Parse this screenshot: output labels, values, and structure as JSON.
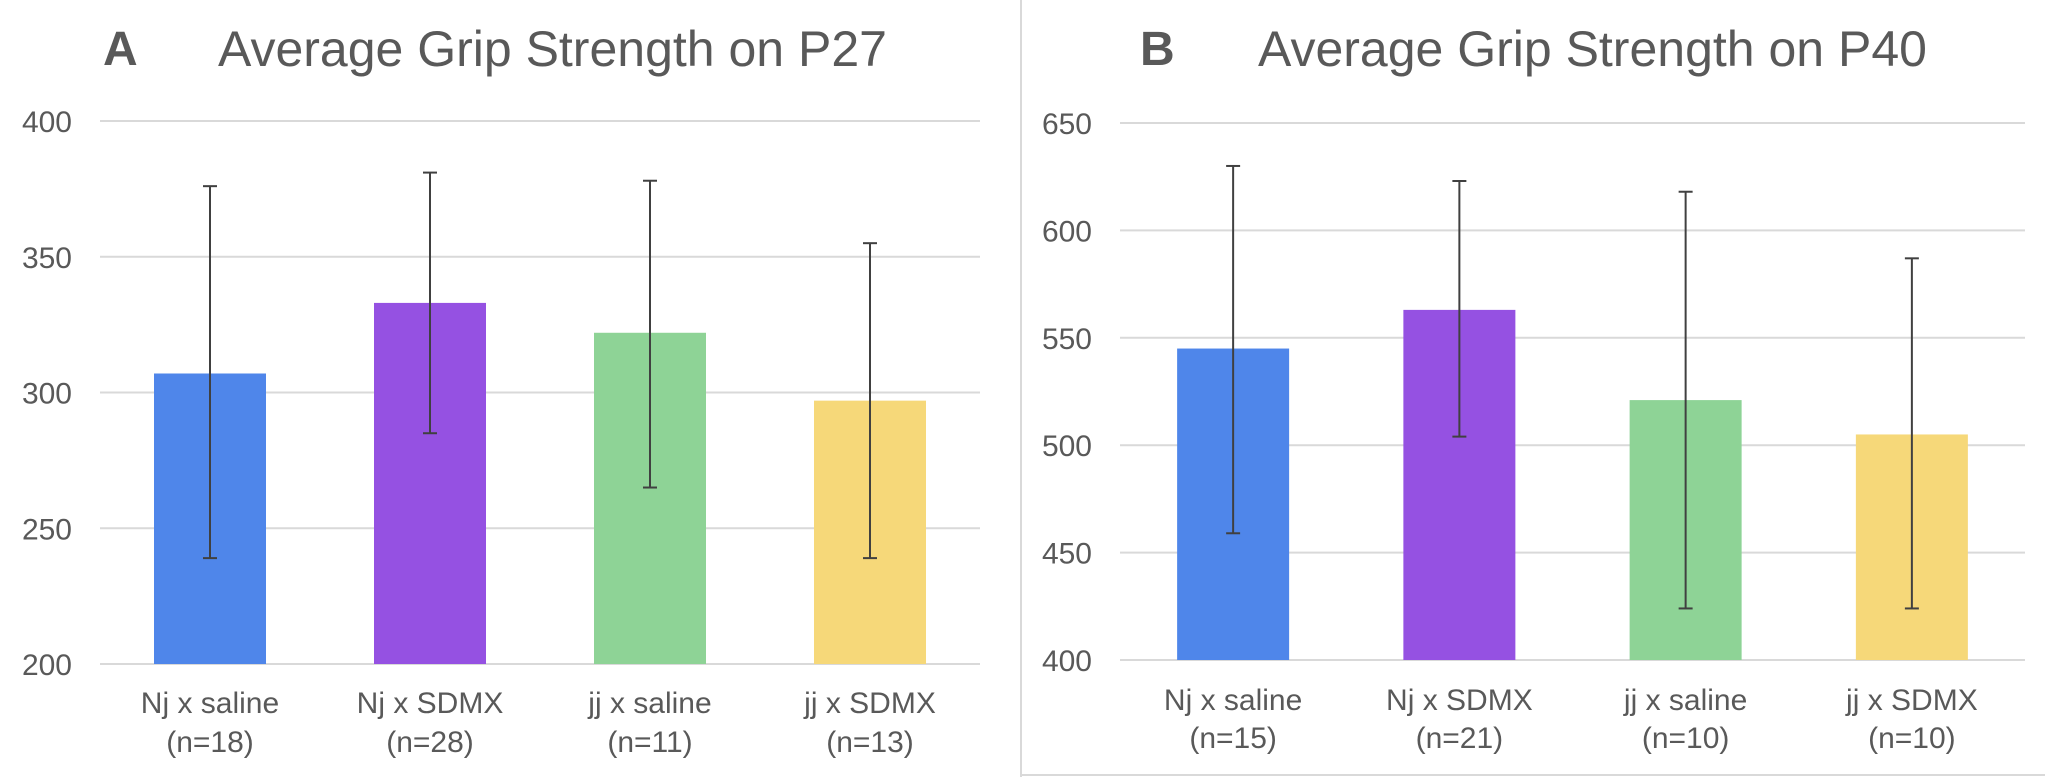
{
  "panels": [
    {
      "letter": "A",
      "title": "Average Grip Strength on P27"
    },
    {
      "letter": "B",
      "title": "Average Grip Strength on P40"
    }
  ],
  "chart_data": [
    {
      "type": "bar",
      "title": "Average Grip Strength on P27",
      "categories": [
        [
          "Nj x saline",
          "(n=18)"
        ],
        [
          "Nj x SDMX",
          "(n=28)"
        ],
        [
          "jj x saline",
          "(n=11)"
        ],
        [
          "jj x SDMX",
          "(n=13)"
        ]
      ],
      "values": [
        307,
        333,
        322,
        297
      ],
      "error_low": [
        239,
        285,
        265,
        239
      ],
      "error_high": [
        376,
        381,
        378,
        355
      ],
      "colors": [
        "#4F86EA",
        "#9551E2",
        "#8ED396",
        "#F6D879"
      ],
      "ylim": [
        200,
        400
      ],
      "yticks": [
        200,
        250,
        300,
        350,
        400
      ],
      "grid": true,
      "xlabel": "",
      "ylabel": ""
    },
    {
      "type": "bar",
      "title": "Average Grip Strength on P40",
      "categories": [
        [
          "Nj x saline",
          "(n=15)"
        ],
        [
          "Nj x SDMX",
          "(n=21)"
        ],
        [
          "jj x saline",
          "(n=10)"
        ],
        [
          "jj x SDMX",
          "(n=10)"
        ]
      ],
      "values": [
        545,
        563,
        521,
        505
      ],
      "error_low": [
        459,
        504,
        424,
        424
      ],
      "error_high": [
        630,
        623,
        618,
        587
      ],
      "colors": [
        "#4F86EA",
        "#9551E2",
        "#8ED396",
        "#F6D879"
      ],
      "ylim": [
        400,
        650
      ],
      "yticks": [
        400,
        450,
        500,
        550,
        600,
        650
      ],
      "grid": true,
      "xlabel": "",
      "ylabel": ""
    }
  ]
}
